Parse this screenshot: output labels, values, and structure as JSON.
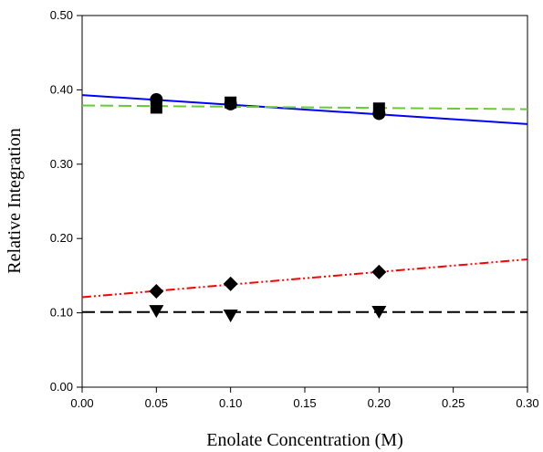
{
  "chart_data": {
    "type": "scatter",
    "title": "",
    "xlabel": "Enolate Concentration (M)",
    "ylabel": "Relative Integration",
    "xlim": [
      0.0,
      0.3
    ],
    "ylim": [
      0.0,
      0.5
    ],
    "x_ticks": [
      "0.00",
      "0.05",
      "0.10",
      "0.15",
      "0.20",
      "0.25",
      "0.30"
    ],
    "y_ticks": [
      "0.00",
      "0.10",
      "0.20",
      "0.30",
      "0.40",
      "0.50"
    ],
    "grid": false,
    "legend": "none",
    "series": [
      {
        "marker": "circle",
        "points": [
          [
            0.05,
            0.387
          ],
          [
            0.1,
            0.381
          ],
          [
            0.2,
            0.368
          ]
        ],
        "fit": {
          "x": [
            0.0,
            0.3
          ],
          "y": [
            0.393,
            0.354
          ],
          "color": "#0000ff",
          "dash": "solid"
        }
      },
      {
        "marker": "square",
        "points": [
          [
            0.05,
            0.376
          ],
          [
            0.1,
            0.383
          ],
          [
            0.2,
            0.375
          ]
        ],
        "fit": {
          "x": [
            0.0,
            0.3
          ],
          "y": [
            0.379,
            0.374
          ],
          "color": "#66cc33",
          "dash": "dashed"
        }
      },
      {
        "marker": "diamond",
        "points": [
          [
            0.05,
            0.129
          ],
          [
            0.1,
            0.139
          ],
          [
            0.2,
            0.155
          ]
        ],
        "fit": {
          "x": [
            0.0,
            0.3
          ],
          "y": [
            0.121,
            0.172
          ],
          "color": "#ff0000",
          "dash": "dash-dot-dot"
        }
      },
      {
        "marker": "triangle-down",
        "points": [
          [
            0.05,
            0.103
          ],
          [
            0.1,
            0.097
          ],
          [
            0.2,
            0.102
          ]
        ],
        "fit": {
          "x": [
            0.0,
            0.3
          ],
          "y": [
            0.101,
            0.101
          ],
          "color": "#000000",
          "dash": "dashed"
        }
      }
    ]
  }
}
